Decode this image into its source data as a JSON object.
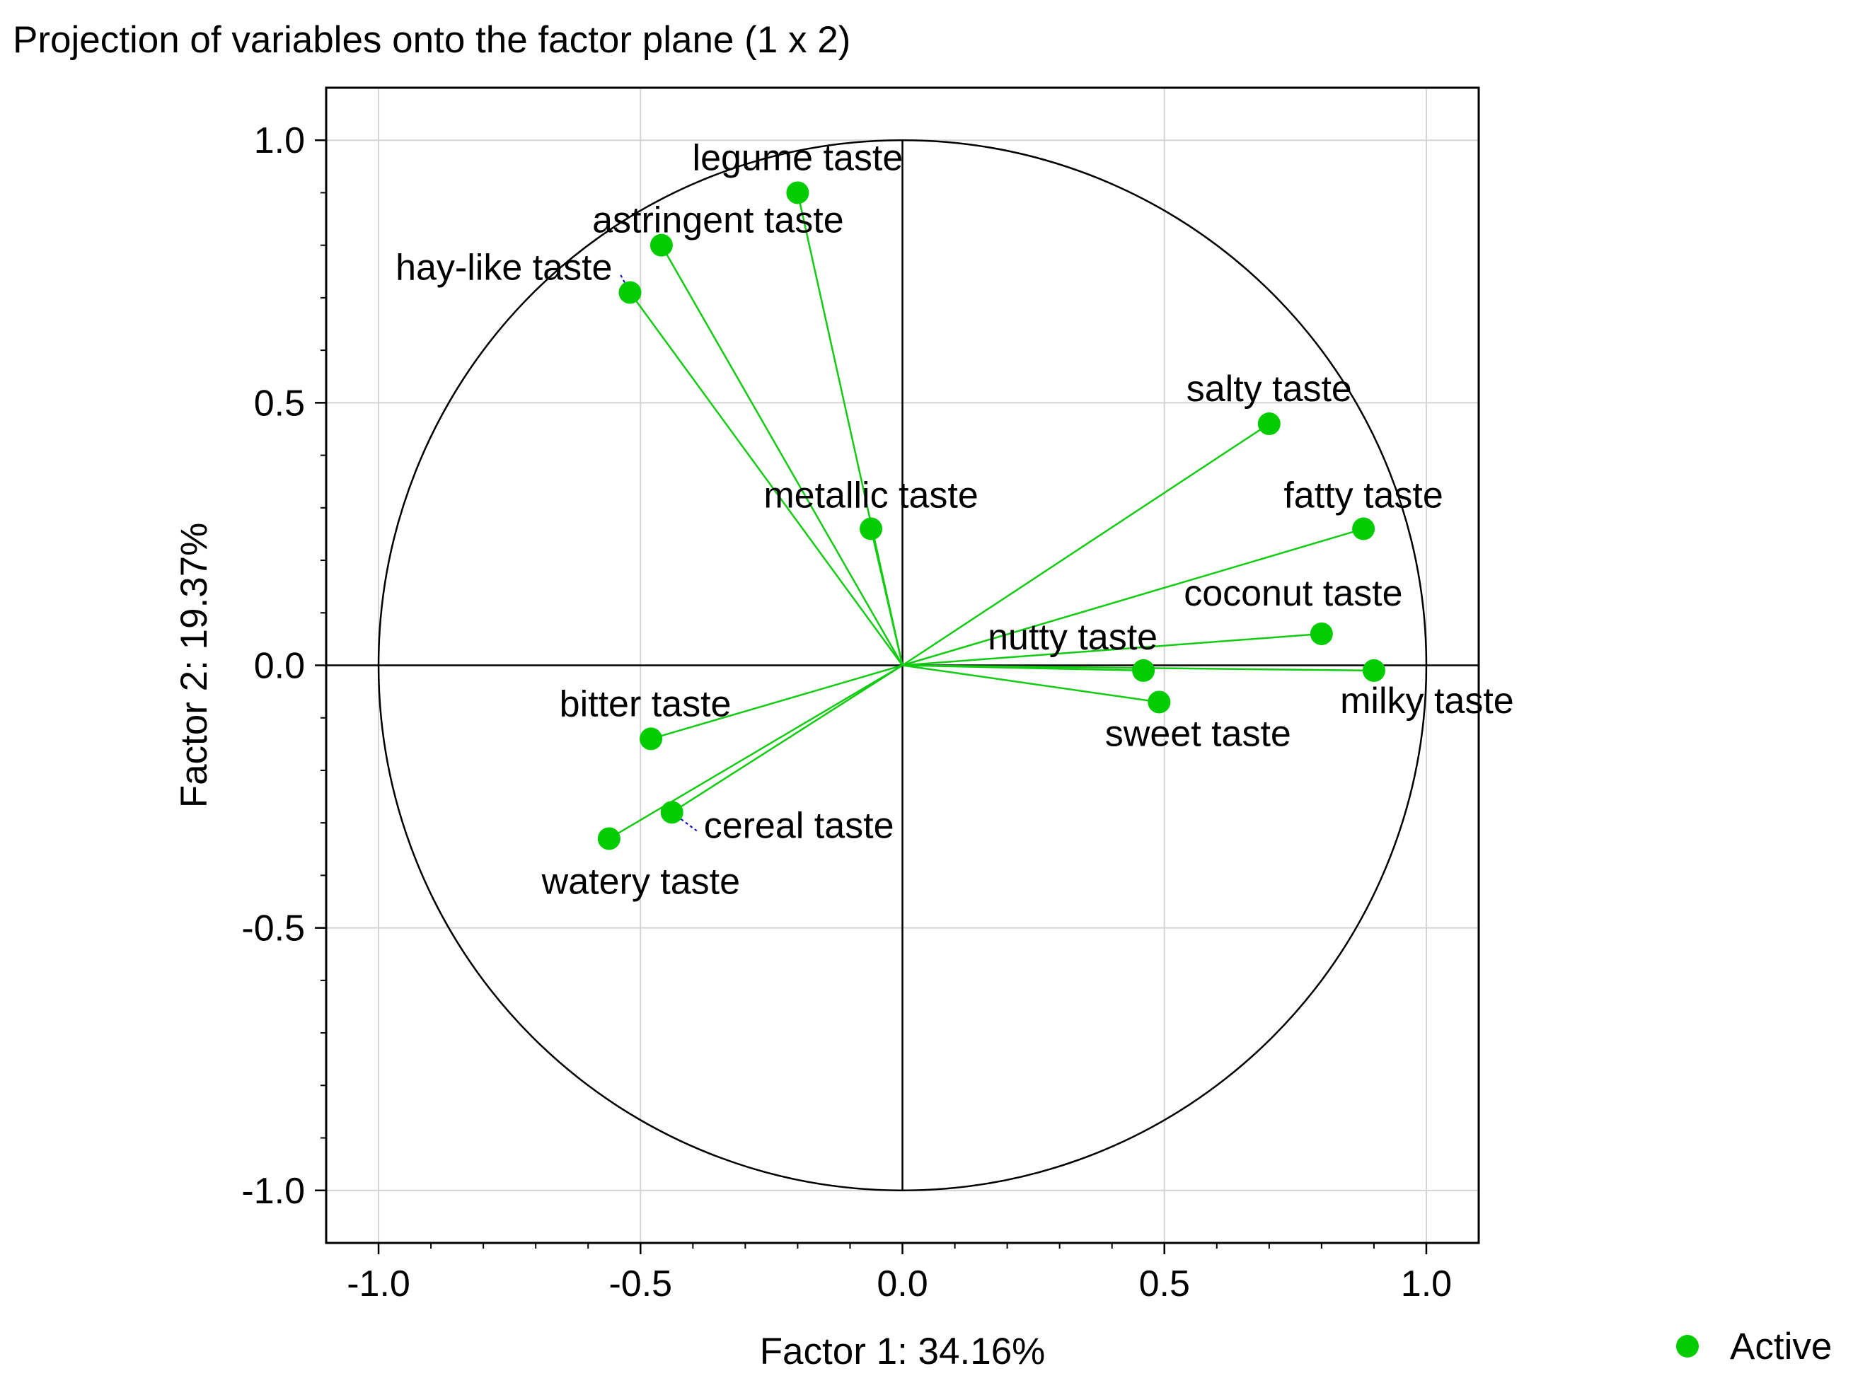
{
  "chart_data": {
    "type": "scatter",
    "title": "Projection of variables onto the factor plane (1 x 2)",
    "xlabel": "Factor 1: 34.16%",
    "ylabel": "Factor 2: 19.37%",
    "xlim": [
      -1.1,
      1.1
    ],
    "ylim": [
      -1.1,
      1.1
    ],
    "x_ticks": [
      "-1.0",
      "-0.5",
      "0.0",
      "0.5",
      "1.0"
    ],
    "y_ticks": [
      "1.0",
      "0.5",
      "0.0",
      "-0.5",
      "-1.0"
    ],
    "grid": true,
    "unit_circle": true,
    "legend": {
      "label": "Active",
      "position": "bottom-right"
    },
    "series": [
      {
        "name": "Active",
        "color": "#00cc00",
        "points": [
          {
            "label": "legume taste",
            "x": -0.2,
            "y": 0.9
          },
          {
            "label": "astringent taste",
            "x": -0.46,
            "y": 0.8
          },
          {
            "label": "hay-like taste",
            "x": -0.52,
            "y": 0.71
          },
          {
            "label": "salty taste",
            "x": 0.7,
            "y": 0.46
          },
          {
            "label": "metallic taste",
            "x": -0.06,
            "y": 0.26
          },
          {
            "label": "fatty taste",
            "x": 0.88,
            "y": 0.26
          },
          {
            "label": "coconut taste",
            "x": 0.8,
            "y": 0.06
          },
          {
            "label": "nutty taste",
            "x": 0.46,
            "y": -0.01
          },
          {
            "label": "milky taste",
            "x": 0.9,
            "y": -0.01
          },
          {
            "label": "sweet taste",
            "x": 0.49,
            "y": -0.07
          },
          {
            "label": "bitter taste",
            "x": -0.48,
            "y": -0.14
          },
          {
            "label": "cereal taste",
            "x": -0.44,
            "y": -0.28
          },
          {
            "label": "watery taste",
            "x": -0.56,
            "y": -0.33
          }
        ]
      }
    ]
  },
  "colors": {
    "point": "#00cc00",
    "vector": "#11cc11",
    "leader": "#0000cc",
    "grid": "#d4d4d4"
  }
}
